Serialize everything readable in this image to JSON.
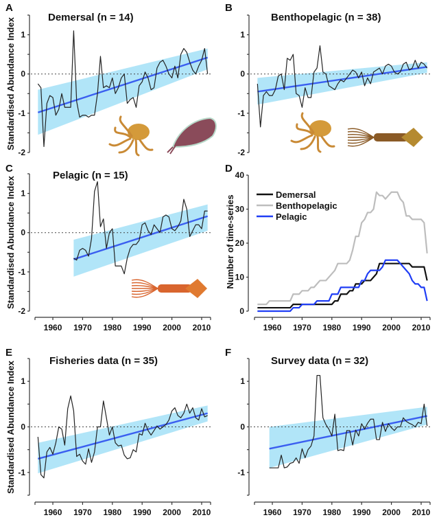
{
  "colors": {
    "series": "#222222",
    "trend": "#3a5ef0",
    "ci_band": "#a9e2f7",
    "demersal": "#111111",
    "benthopelagic": "#bdbdbd",
    "pelagic": "#1f3df5"
  },
  "chart_data": [
    {
      "id": "A",
      "type": "line",
      "title": "Demersal (n = 14)",
      "ylabel": "Standardised Abundance Index",
      "xlabel": "",
      "ylim": [
        -2,
        1.5
      ],
      "yticks": [
        1,
        0,
        -1,
        -2
      ],
      "xlim": [
        1954,
        2013
      ],
      "x_tick_labels_shown": false,
      "zero_line": true,
      "illustrations": [
        "octopus",
        "cuttlefish"
      ],
      "x": [
        1955,
        1956,
        1957,
        1958,
        1959,
        1960,
        1961,
        1962,
        1963,
        1964,
        1965,
        1966,
        1967,
        1968,
        1969,
        1970,
        1971,
        1972,
        1973,
        1974,
        1975,
        1976,
        1977,
        1978,
        1979,
        1980,
        1981,
        1982,
        1983,
        1984,
        1985,
        1986,
        1987,
        1988,
        1989,
        1990,
        1991,
        1992,
        1993,
        1994,
        1995,
        1996,
        1997,
        1998,
        1999,
        2000,
        2001,
        2002,
        2003,
        2004,
        2005,
        2006,
        2007,
        2008,
        2009,
        2010,
        2011,
        2012
      ],
      "y": [
        -0.25,
        -0.35,
        -1.85,
        -0.75,
        -0.55,
        -0.6,
        -1.05,
        -0.9,
        -0.5,
        -0.85,
        -0.85,
        -0.85,
        1.1,
        -0.7,
        -1.1,
        -1.05,
        -1.05,
        -1.1,
        -1.05,
        -1.05,
        -0.5,
        0.45,
        -0.35,
        -0.3,
        -0.35,
        -0.1,
        -0.5,
        -0.35,
        -0.1,
        0.0,
        -0.75,
        -0.65,
        -0.6,
        -0.85,
        -0.3,
        -0.2,
        0.05,
        -0.1,
        -0.4,
        -0.35,
        0.15,
        0.3,
        0.35,
        0.2,
        0.0,
        -0.1,
        0.2,
        -0.1,
        0.5,
        0.65,
        0.55,
        0.3,
        0.1,
        0.0,
        0.2,
        0.35,
        0.65,
        0.0
      ],
      "trend": {
        "x": [
          1955,
          2012
        ],
        "y": [
          -0.98,
          0.42
        ]
      },
      "ci": {
        "x": [
          1955,
          2012
        ],
        "lower": [
          -1.55,
          0.12
        ],
        "upper": [
          -0.4,
          0.65
        ]
      }
    },
    {
      "id": "B",
      "type": "line",
      "title": "Benthopelagic (n = 38)",
      "ylabel": "",
      "xlabel": "",
      "ylim": [
        -2,
        1.5
      ],
      "yticks": [
        1,
        0,
        -1,
        -2
      ],
      "xlim": [
        1954,
        2013
      ],
      "x_tick_labels_shown": false,
      "zero_line": true,
      "illustrations": [
        "octopus",
        "squid"
      ],
      "x": [
        1955,
        1956,
        1957,
        1958,
        1959,
        1960,
        1961,
        1962,
        1963,
        1964,
        1965,
        1966,
        1967,
        1968,
        1969,
        1970,
        1971,
        1972,
        1973,
        1974,
        1975,
        1976,
        1977,
        1978,
        1979,
        1980,
        1981,
        1982,
        1983,
        1984,
        1985,
        1986,
        1987,
        1988,
        1989,
        1990,
        1991,
        1992,
        1993,
        1994,
        1995,
        1996,
        1997,
        1998,
        1999,
        2000,
        2001,
        2002,
        2003,
        2004,
        2005,
        2006,
        2007,
        2008,
        2009,
        2010,
        2011,
        2012
      ],
      "y": [
        -0.25,
        -1.35,
        -0.55,
        -0.45,
        -0.55,
        -0.55,
        -0.4,
        -0.05,
        0.0,
        -0.4,
        0.4,
        0.35,
        0.5,
        -0.5,
        -0.55,
        -0.85,
        -0.35,
        -0.6,
        -0.6,
        0.05,
        0.15,
        0.72,
        0.05,
        0.0,
        -0.3,
        -0.35,
        -0.4,
        -0.25,
        -0.15,
        -0.2,
        -0.1,
        0.0,
        0.1,
        0.05,
        -0.1,
        0.05,
        -0.3,
        -0.1,
        -0.25,
        0.05,
        0.1,
        0.15,
        0.0,
        0.2,
        0.25,
        0.2,
        0.05,
        0.0,
        0.05,
        0.25,
        0.3,
        0.1,
        0.15,
        0.35,
        0.15,
        0.3,
        0.25,
        0.15
      ],
      "trend": {
        "x": [
          1955,
          2012
        ],
        "y": [
          -0.45,
          0.18
        ]
      },
      "ci": {
        "x": [
          1955,
          2012
        ],
        "lower": [
          -0.78,
          0.03
        ],
        "upper": [
          -0.1,
          0.3
        ]
      }
    },
    {
      "id": "C",
      "type": "line",
      "title": "Pelagic (n = 15)",
      "ylabel": "Standardised Abundance Index",
      "xlabel": "",
      "ylim": [
        -2,
        1.5
      ],
      "yticks": [
        1,
        0,
        -1,
        -2
      ],
      "xlim": [
        1954,
        2013
      ],
      "xticks": [
        1960,
        1970,
        1980,
        1990,
        2000,
        2010
      ],
      "x_tick_labels_shown": true,
      "zero_line": true,
      "illustrations": [
        "squid"
      ],
      "x": [
        1967,
        1968,
        1969,
        1970,
        1971,
        1972,
        1973,
        1974,
        1975,
        1976,
        1977,
        1978,
        1979,
        1980,
        1981,
        1982,
        1983,
        1984,
        1985,
        1986,
        1987,
        1988,
        1989,
        1990,
        1991,
        1992,
        1993,
        1994,
        1995,
        1996,
        1997,
        1998,
        1999,
        2000,
        2001,
        2002,
        2003,
        2004,
        2005,
        2006,
        2007,
        2008,
        2009,
        2010,
        2011,
        2012
      ],
      "y": [
        -0.65,
        -0.7,
        -0.45,
        -0.4,
        -0.45,
        -0.6,
        -0.15,
        1.05,
        1.3,
        0.15,
        0.35,
        -0.4,
        0.0,
        0.1,
        -0.85,
        -0.85,
        -0.85,
        -1.05,
        -0.65,
        -0.4,
        -0.3,
        -0.3,
        -0.2,
        0.2,
        0.25,
        0.05,
        -0.05,
        0.2,
        0.1,
        0.0,
        0.4,
        0.45,
        0.4,
        0.1,
        0.05,
        0.15,
        0.3,
        0.85,
        0.6,
        -0.1,
        0.05,
        0.2,
        0.2,
        0.1,
        0.55,
        0.55
      ],
      "trend": {
        "x": [
          1967,
          2012
        ],
        "y": [
          -0.68,
          0.42
        ]
      },
      "ci": {
        "x": [
          1967,
          2012
        ],
        "lower": [
          -1.12,
          0.05
        ],
        "upper": [
          -0.18,
          0.72
        ]
      }
    },
    {
      "id": "D",
      "type": "line",
      "title": "",
      "ylabel": "Number of time-series",
      "xlabel": "",
      "ylim": [
        0,
        40
      ],
      "yticks": [
        40,
        30,
        20,
        10,
        0
      ],
      "xlim": [
        1954,
        2013
      ],
      "xticks": [
        1960,
        1970,
        1980,
        1990,
        2000,
        2010
      ],
      "x_tick_labels_shown": true,
      "legend_position": "top-left",
      "x": [
        1955,
        1956,
        1957,
        1958,
        1959,
        1960,
        1961,
        1962,
        1963,
        1964,
        1965,
        1966,
        1967,
        1968,
        1969,
        1970,
        1971,
        1972,
        1973,
        1974,
        1975,
        1976,
        1977,
        1978,
        1979,
        1980,
        1981,
        1982,
        1983,
        1984,
        1985,
        1986,
        1987,
        1988,
        1989,
        1990,
        1991,
        1992,
        1993,
        1994,
        1995,
        1996,
        1997,
        1998,
        1999,
        2000,
        2001,
        2002,
        2003,
        2004,
        2005,
        2006,
        2007,
        2008,
        2009,
        2010,
        2011,
        2012
      ],
      "series": [
        {
          "name": "Demersal",
          "color_key": "demersal",
          "values": [
            1,
            1,
            1,
            1,
            1,
            1,
            1,
            1,
            1,
            1,
            1,
            1,
            2,
            2,
            2,
            2,
            2,
            2,
            2,
            2,
            2,
            2,
            2,
            2,
            2,
            2,
            3,
            3,
            5,
            5,
            5,
            6,
            6,
            8,
            8,
            8,
            9,
            9,
            9,
            10,
            11,
            14,
            14,
            14,
            14,
            14,
            14,
            14,
            14,
            14,
            14,
            14,
            13,
            13,
            13,
            13,
            13,
            9
          ]
        },
        {
          "name": "Benthopelagic",
          "color_key": "benthopelagic",
          "values": [
            2,
            2,
            2,
            2,
            3,
            3,
            3,
            3,
            3,
            3,
            3,
            3,
            5,
            5,
            5,
            6,
            6,
            6,
            7,
            7,
            8,
            9,
            9,
            9,
            10,
            11,
            12,
            14,
            14,
            14,
            14,
            15,
            18,
            22,
            22,
            26,
            27,
            29,
            29,
            30,
            35,
            34,
            34,
            33,
            34,
            35,
            35,
            35,
            33,
            32,
            28,
            28,
            27,
            27,
            27,
            27,
            26,
            17
          ]
        },
        {
          "name": "Pelagic",
          "color_key": "pelagic",
          "values": [
            0,
            0,
            0,
            0,
            0,
            0,
            0,
            0,
            0,
            0,
            0,
            0,
            1,
            1,
            1,
            2,
            2,
            2,
            2,
            2,
            3,
            3,
            3,
            3,
            3,
            5,
            5,
            5,
            7,
            7,
            7,
            7,
            7,
            7,
            7,
            9,
            9,
            11,
            12,
            12,
            12,
            12,
            13,
            15,
            15,
            15,
            15,
            15,
            14,
            13,
            12,
            11,
            9,
            8,
            8,
            7,
            7,
            3
          ]
        }
      ]
    },
    {
      "id": "E",
      "type": "line",
      "title": "Fisheries data (n = 35)",
      "ylabel": "Standardised Abundance Index",
      "xlabel": "",
      "ylim": [
        -1.5,
        1.5
      ],
      "yticks": [
        1,
        0,
        -1
      ],
      "xlim": [
        1954,
        2013
      ],
      "xticks": [
        1960,
        1970,
        1980,
        1990,
        2000,
        2010
      ],
      "x_tick_labels_shown": true,
      "zero_line": true,
      "x": [
        1955,
        1956,
        1957,
        1958,
        1959,
        1960,
        1961,
        1962,
        1963,
        1964,
        1965,
        1966,
        1967,
        1968,
        1969,
        1970,
        1971,
        1972,
        1973,
        1974,
        1975,
        1976,
        1977,
        1978,
        1979,
        1980,
        1981,
        1982,
        1983,
        1984,
        1985,
        1986,
        1987,
        1988,
        1989,
        1990,
        1991,
        1992,
        1993,
        1994,
        1995,
        1996,
        1997,
        1998,
        1999,
        2000,
        2001,
        2002,
        2003,
        2004,
        2005,
        2006,
        2007,
        2008,
        2009,
        2010,
        2011,
        2012
      ],
      "y": [
        -0.22,
        -1.05,
        -1.12,
        -0.55,
        -0.45,
        -0.6,
        -0.35,
        0.0,
        -0.05,
        -0.4,
        0.4,
        0.68,
        0.35,
        -0.65,
        -0.6,
        -0.75,
        -0.82,
        -0.48,
        -0.78,
        -0.55,
        0.0,
        0.0,
        0.57,
        0.2,
        -0.18,
        0.0,
        -0.35,
        -0.42,
        -0.4,
        -0.62,
        -0.7,
        -0.68,
        -0.5,
        -0.55,
        -0.15,
        -0.18,
        0.08,
        -0.08,
        -0.18,
        -0.08,
        0.02,
        -0.05,
        0.0,
        0.05,
        0.15,
        0.35,
        0.42,
        0.25,
        0.2,
        0.3,
        0.5,
        0.3,
        0.42,
        0.2,
        0.15,
        0.4,
        0.22,
        0.25
      ],
      "trend": {
        "x": [
          1955,
          2012
        ],
        "y": [
          -0.7,
          0.3
        ]
      },
      "ci": {
        "x": [
          1955,
          2012
        ],
        "lower": [
          -1.02,
          0.12
        ],
        "upper": [
          -0.35,
          0.47
        ]
      }
    },
    {
      "id": "F",
      "type": "line",
      "title": "Survey data (n = 32)",
      "ylabel": "",
      "xlabel": "",
      "ylim": [
        -1.5,
        1.5
      ],
      "yticks": [
        1,
        0,
        -1
      ],
      "xlim": [
        1954,
        2013
      ],
      "xticks": [
        1960,
        1970,
        1980,
        1990,
        2000,
        2010
      ],
      "x_tick_labels_shown": true,
      "zero_line": true,
      "x": [
        1959,
        1960,
        1961,
        1962,
        1963,
        1964,
        1965,
        1966,
        1967,
        1968,
        1969,
        1970,
        1971,
        1972,
        1973,
        1974,
        1975,
        1976,
        1977,
        1978,
        1979,
        1980,
        1981,
        1982,
        1983,
        1984,
        1985,
        1986,
        1987,
        1988,
        1989,
        1990,
        1991,
        1992,
        1993,
        1994,
        1995,
        1996,
        1997,
        1998,
        1999,
        2000,
        2001,
        2002,
        2003,
        2004,
        2005,
        2006,
        2007,
        2008,
        2009,
        2010,
        2011,
        2012
      ],
      "y": [
        -0.9,
        -0.9,
        -0.9,
        -0.9,
        -0.62,
        -0.9,
        -0.88,
        -0.8,
        -0.78,
        -0.68,
        -0.8,
        -0.48,
        -0.68,
        -0.5,
        -0.42,
        -0.2,
        1.13,
        1.13,
        0.2,
        0.05,
        -0.05,
        -0.2,
        0.28,
        -0.52,
        -0.5,
        -0.52,
        -0.08,
        -0.08,
        -0.4,
        -0.07,
        -0.2,
        0.07,
        -0.05,
        0.08,
        0.17,
        0.17,
        -0.28,
        -0.28,
        0.1,
        -0.1,
        0.07,
        -0.02,
        -0.08,
        0.0,
        0.0,
        0.2,
        0.12,
        0.08,
        0.05,
        0.0,
        0.1,
        0.07,
        0.5,
        0.02
      ],
      "trend": {
        "x": [
          1959,
          2012
        ],
        "y": [
          -0.48,
          0.24
        ]
      },
      "ci": {
        "x": [
          1959,
          2012
        ],
        "lower": [
          -0.9,
          0.05
        ],
        "upper": [
          0.0,
          0.44
        ]
      }
    }
  ]
}
